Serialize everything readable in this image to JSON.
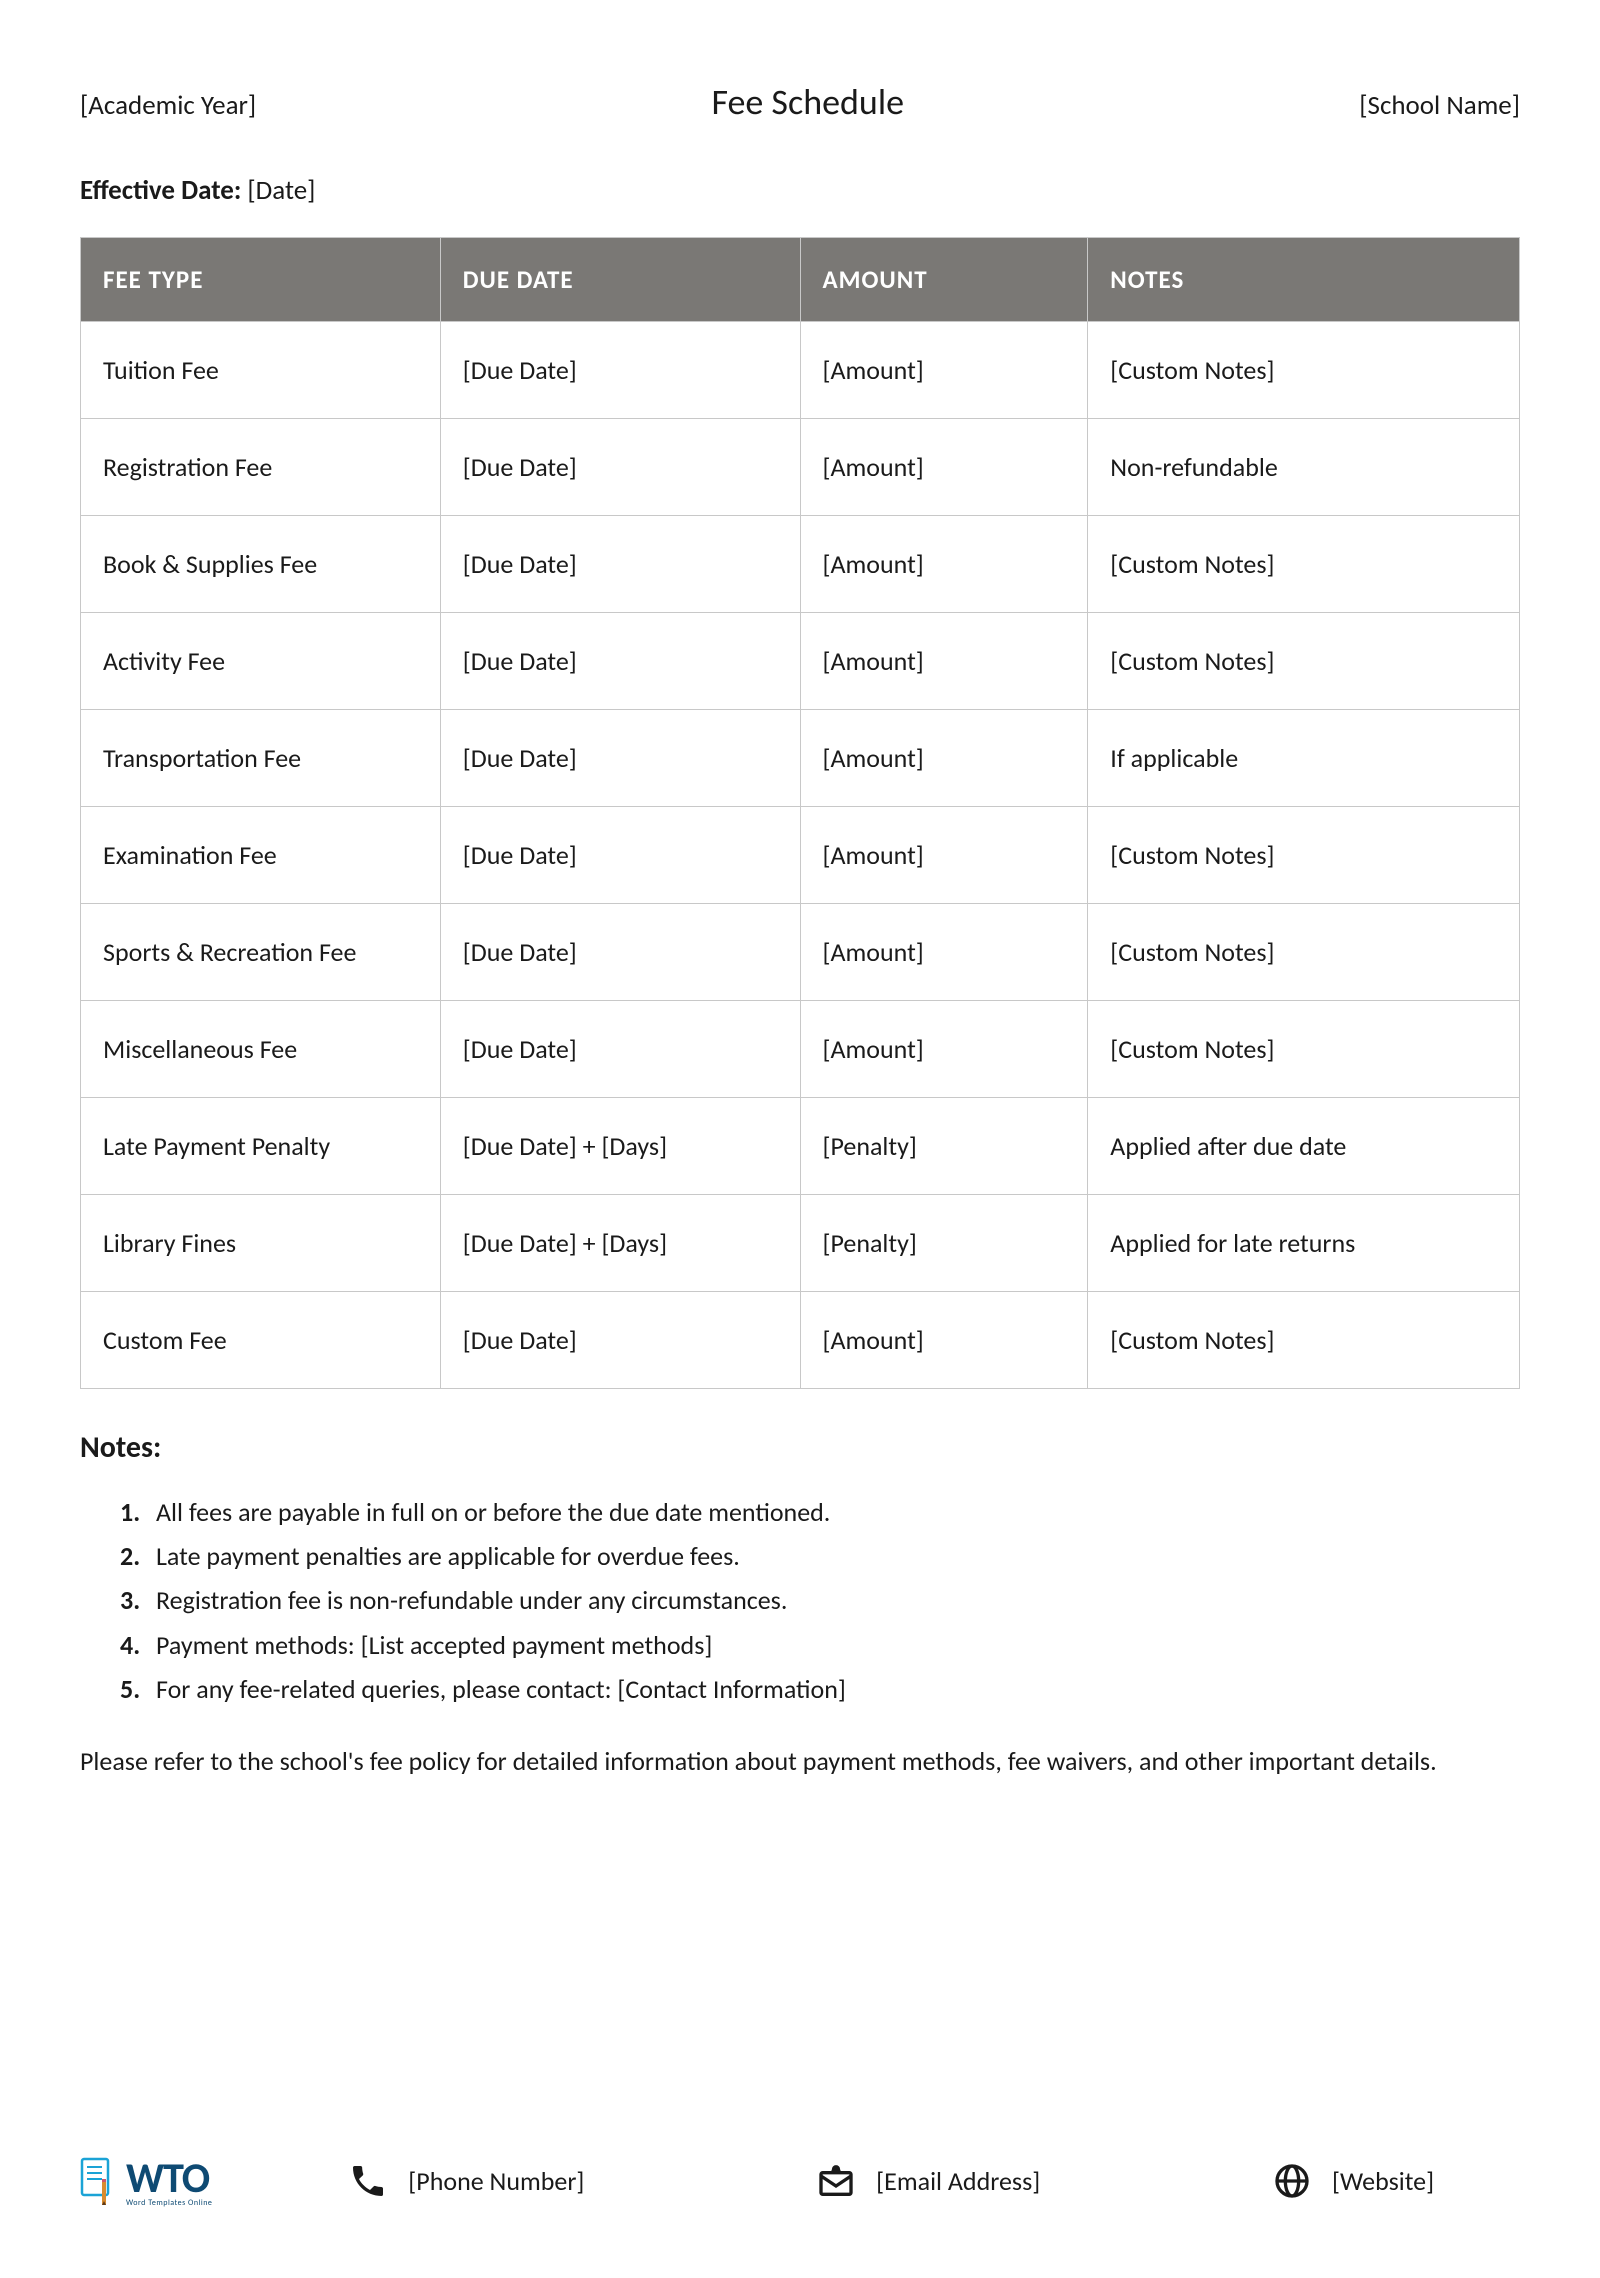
{
  "header": {
    "left": "[Academic Year]",
    "title": "Fee Schedule",
    "right": "[School Name]"
  },
  "effective_date": {
    "label": "Effective Date:",
    "value": "[Date]"
  },
  "table": {
    "columns": [
      "FEE TYPE",
      "DUE DATE",
      "AMOUNT",
      "NOTES"
    ],
    "rows": [
      {
        "fee_type": "Tuition Fee",
        "due_date": "[Due Date]",
        "amount": "[Amount]",
        "notes": "[Custom Notes]"
      },
      {
        "fee_type": "Registration Fee",
        "due_date": "[Due Date]",
        "amount": "[Amount]",
        "notes": "Non-refundable"
      },
      {
        "fee_type": "Book & Supplies Fee",
        "due_date": "[Due Date]",
        "amount": "[Amount]",
        "notes": "[Custom Notes]"
      },
      {
        "fee_type": "Activity Fee",
        "due_date": "[Due Date]",
        "amount": "[Amount]",
        "notes": "[Custom Notes]"
      },
      {
        "fee_type": "Transportation Fee",
        "due_date": "[Due Date]",
        "amount": "[Amount]",
        "notes": "If applicable"
      },
      {
        "fee_type": "Examination Fee",
        "due_date": "[Due Date]",
        "amount": "[Amount]",
        "notes": "[Custom Notes]"
      },
      {
        "fee_type": "Sports & Recreation Fee",
        "due_date": "[Due Date]",
        "amount": "[Amount]",
        "notes": "[Custom Notes]"
      },
      {
        "fee_type": "Miscellaneous Fee",
        "due_date": "[Due Date]",
        "amount": "[Amount]",
        "notes": "[Custom Notes]"
      },
      {
        "fee_type": "Late Payment Penalty",
        "due_date": "[Due Date] + [Days]",
        "amount": "[Penalty]",
        "notes": "Applied after due date"
      },
      {
        "fee_type": "Library Fines",
        "due_date": "[Due Date] + [Days]",
        "amount": "[Penalty]",
        "notes": "Applied for late returns"
      },
      {
        "fee_type": "Custom Fee",
        "due_date": "[Due Date]",
        "amount": "[Amount]",
        "notes": "[Custom Notes]"
      }
    ]
  },
  "notes_section": {
    "heading": "Notes:",
    "items": [
      "All fees are payable in full on or before the due date mentioned.",
      "Late payment penalties are applicable for overdue fees.",
      "Registration fee is non-refundable under any circumstances.",
      "Payment methods: [List accepted payment methods]",
      "For any fee-related queries, please contact: [Contact Information]"
    ]
  },
  "closing_text": "Please refer to the school's fee policy for detailed information about payment methods, fee waivers, and other important details.",
  "footer": {
    "logo_text": "WTO",
    "logo_sub": "Word Templates Online",
    "phone": "[Phone Number]",
    "email": "[Email Address]",
    "website": "[Website]"
  },
  "style": {
    "header_bg": "#7a7875",
    "header_fg": "#ffffff",
    "border_color": "#c8c8c8",
    "text_color": "#1a1a1a",
    "logo_color": "#0e4a73"
  }
}
